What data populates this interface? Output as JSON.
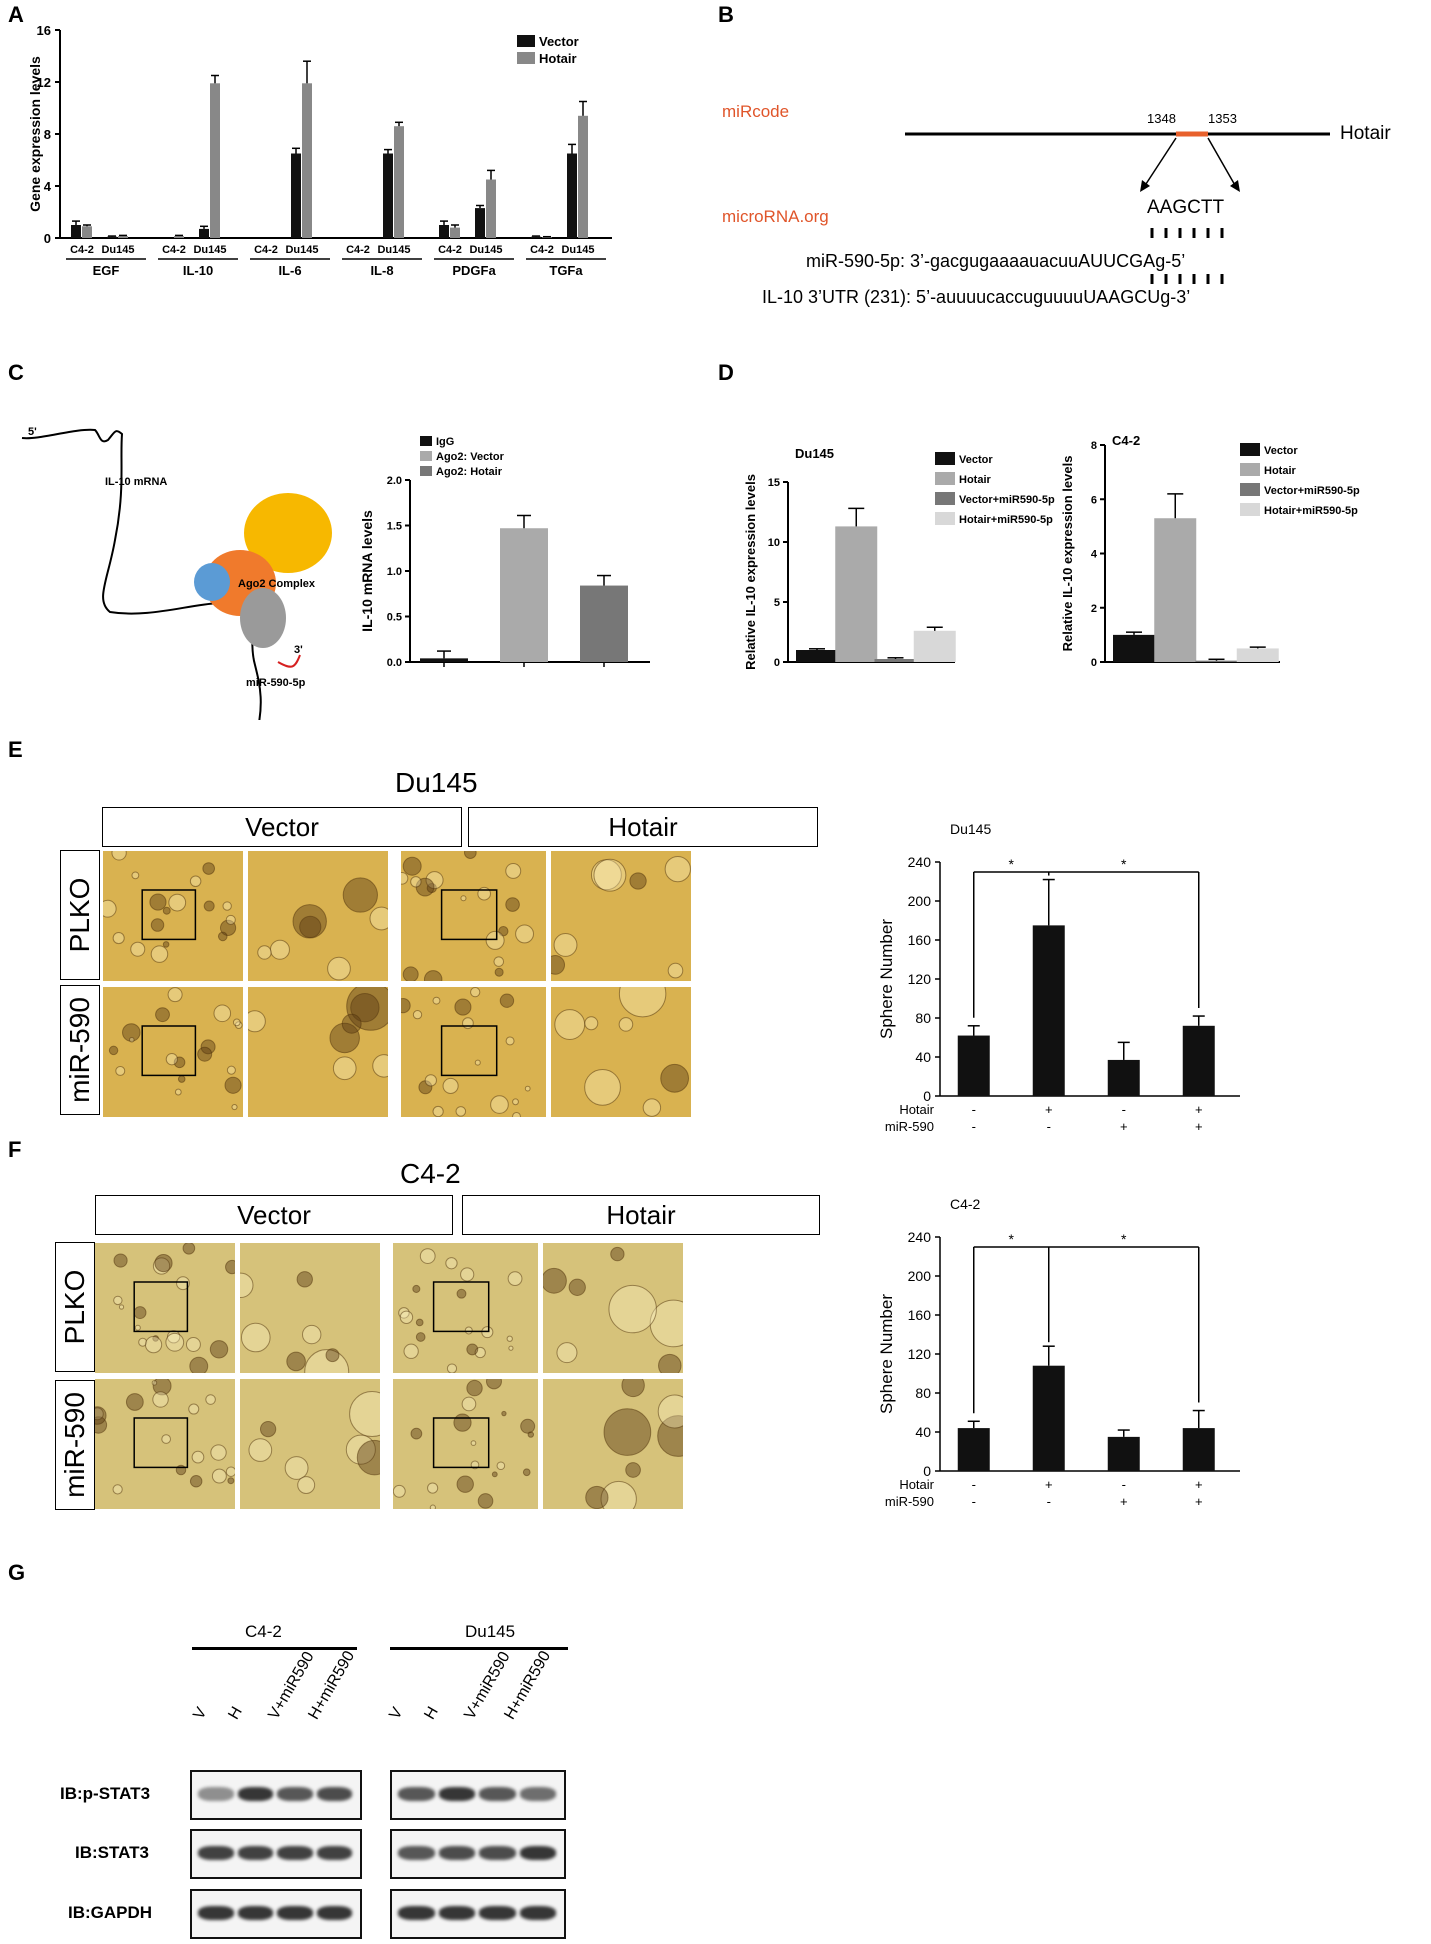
{
  "panels": {
    "A": {
      "label": "A",
      "legend": [
        "Vector",
        "Hotair"
      ],
      "colors": {
        "vector": "#111111",
        "hotair": "#888888"
      },
      "ylabel": "Gene expression levels",
      "genes": [
        "EGF",
        "IL-10",
        "IL-6",
        "IL-8",
        "PDGFa",
        "TGFa"
      ],
      "cell_labels": [
        "C4-2",
        "Du145"
      ],
      "yticks": [
        "0",
        "4",
        "8",
        "12",
        "16"
      ]
    },
    "B": {
      "label": "B",
      "mircode": "miRcode",
      "microrna": "microRNA.org",
      "pos_start": "1348",
      "pos_end": "1353",
      "gene": "Hotair",
      "seed": "AAGCTT",
      "mir_line": "miR-590-5p: 3’-gacgugaaaauacuuAUUCGAg-5’",
      "il10_line": "IL-10 3’UTR (231): 5’-auuuucaccuguuuuUAAGCUg-3’"
    },
    "C": {
      "label": "C",
      "five_prime": "5'",
      "mrna_label": "IL-10 mRNA",
      "complex_label": "Ago2 Complex",
      "three_prime": "3'",
      "mir_label": "miR-590-5p",
      "legend": [
        "IgG",
        "Ago2: Vector",
        "Ago2: Hotair"
      ],
      "ylabel": "IL-10 mRNA levels",
      "yticks": [
        "0.0",
        "0.5",
        "1.0",
        "1.5",
        "2.0"
      ]
    },
    "D": {
      "label": "D",
      "left_title": "Du145",
      "right_title": "C4-2",
      "ylabel": "Relative IL-10 expression levels",
      "left_legend": [
        "Vector",
        "Hotair",
        "Vector+miR590-5p",
        "Hotair+miR590-5p"
      ],
      "right_legend": [
        "Vector",
        "Hotair",
        "Vector+miR590-5p",
        "Hotair+miR590-5p"
      ],
      "left_yticks": [
        "0",
        "5",
        "10",
        "15"
      ],
      "right_yticks": [
        "0",
        "2",
        "4",
        "6",
        "8"
      ]
    },
    "E": {
      "label": "E",
      "title": "Du145",
      "col_headers": [
        "Vector",
        "Hotair"
      ],
      "row_labels": [
        "PLKO",
        "miR-590"
      ],
      "chart_title": "Du145",
      "ylabel": "Sphere Number",
      "yticks": [
        "0",
        "40",
        "80",
        "120",
        "160",
        "200",
        "240"
      ],
      "hotair_row": [
        "Hotair",
        "-",
        "+",
        "-",
        "+"
      ],
      "mir_row": [
        "miR-590",
        "-",
        "-",
        "+",
        "+"
      ],
      "star": "*"
    },
    "F": {
      "label": "F",
      "title": "C4-2",
      "col_headers": [
        "Vector",
        "Hotair"
      ],
      "row_labels": [
        "PLKO",
        "miR-590"
      ],
      "chart_title": "C4-2",
      "ylabel": "Sphere Number",
      "yticks": [
        "0",
        "40",
        "80",
        "120",
        "160",
        "200",
        "240"
      ],
      "hotair_row": [
        "Hotair",
        "-",
        "+",
        "-",
        "+"
      ],
      "mir_row": [
        "miR-590",
        "-",
        "-",
        "+",
        "+"
      ],
      "star": "*"
    },
    "G": {
      "label": "G",
      "groups": [
        "C4-2",
        "Du145"
      ],
      "lanes": [
        "V",
        "H",
        "V+miR590",
        "H+miR590"
      ],
      "rows": [
        "IB:p-STAT3",
        "IB:STAT3",
        "IB:GAPDH"
      ]
    }
  },
  "chart_data": [
    {
      "type": "bar",
      "panel": "A",
      "ylabel": "Gene expression levels",
      "ylim": [
        0,
        16
      ],
      "categories": [
        "EGF C4-2",
        "EGF Du145",
        "IL-10 C4-2",
        "IL-10 Du145",
        "IL-6 C4-2",
        "IL-6 Du145",
        "IL-8 C4-2",
        "IL-8 Du145",
        "PDGFa C4-2",
        "PDGFa Du145",
        "TGFa C4-2",
        "TGFa Du145"
      ],
      "series": [
        {
          "name": "Vector",
          "values": [
            1.0,
            0.1,
            0.0,
            0.7,
            0.0,
            6.5,
            0.0,
            6.5,
            1.0,
            2.3,
            0.1,
            6.5
          ],
          "errors": [
            0.3,
            0.05,
            0,
            0.2,
            0,
            0.4,
            0,
            0.3,
            0.3,
            0.2,
            0.05,
            0.7
          ]
        },
        {
          "name": "Hotair",
          "values": [
            0.9,
            0.15,
            0.15,
            11.9,
            0.0,
            11.9,
            0.0,
            8.6,
            0.8,
            4.5,
            0.05,
            9.4
          ],
          "errors": [
            0.1,
            0.05,
            0.05,
            0.6,
            0,
            1.7,
            0,
            0.3,
            0.2,
            0.7,
            0.05,
            1.1
          ]
        }
      ]
    },
    {
      "type": "bar",
      "panel": "C",
      "ylabel": "IL-10 mRNA levels",
      "ylim": [
        0,
        2.0
      ],
      "categories": [
        "IgG",
        "Ago2: Vector",
        "Ago2: Hotair"
      ],
      "values": [
        0.04,
        1.47,
        0.84
      ],
      "errors": [
        0.08,
        0.14,
        0.11
      ],
      "colors": [
        "#111111",
        "#aaaaaa",
        "#777777"
      ]
    },
    {
      "type": "bar",
      "panel": "D-Du145",
      "ylabel": "Relative IL-10 expression levels",
      "ylim": [
        0,
        15
      ],
      "categories": [
        "Vector",
        "Hotair",
        "Vector+miR590-5p",
        "Hotair+miR590-5p"
      ],
      "values": [
        1.0,
        11.3,
        0.25,
        2.6
      ],
      "errors": [
        0.1,
        1.5,
        0.1,
        0.3
      ],
      "colors": [
        "#111111",
        "#aaaaaa",
        "#777777",
        "#d8d8d8"
      ]
    },
    {
      "type": "bar",
      "panel": "D-C4-2",
      "ylabel": "Relative IL-10 expression levels",
      "ylim": [
        0,
        8
      ],
      "categories": [
        "Vector",
        "Hotair",
        "Vector+miR590-5p",
        "Hotair+miR590-5p"
      ],
      "values": [
        1.0,
        5.3,
        0.05,
        0.5
      ],
      "errors": [
        0.1,
        0.9,
        0.05,
        0.05
      ],
      "colors": [
        "#111111",
        "#aaaaaa",
        "#777777",
        "#d8d8d8"
      ]
    },
    {
      "type": "bar",
      "panel": "E",
      "title": "Du145",
      "ylabel": "Sphere Number",
      "ylim": [
        0,
        240
      ],
      "categories": [
        "Vector PLKO",
        "Hotair PLKO",
        "Vector miR-590",
        "Hotair miR-590"
      ],
      "values": [
        62,
        175,
        37,
        72
      ],
      "errors": [
        10,
        47,
        18,
        10
      ]
    },
    {
      "type": "bar",
      "panel": "F",
      "title": "C4-2",
      "ylabel": "Sphere Number",
      "ylim": [
        0,
        240
      ],
      "categories": [
        "Vector PLKO",
        "Hotair PLKO",
        "Vector miR-590",
        "Hotair miR-590"
      ],
      "values": [
        44,
        108,
        35,
        44
      ],
      "errors": [
        7,
        20,
        7,
        18
      ]
    }
  ]
}
